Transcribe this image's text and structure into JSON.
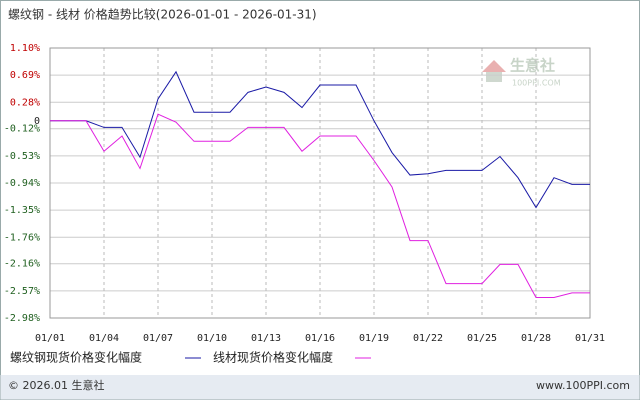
{
  "chart_data": {
    "type": "line",
    "title": "螺纹钢 - 线材 价格趋势比较(2026-01-01 - 2026-01-31)",
    "categories": [
      "01/01",
      null,
      null,
      "01/04",
      null,
      null,
      "01/07",
      null,
      null,
      "01/10",
      null,
      null,
      "01/13",
      null,
      null,
      "01/16",
      null,
      null,
      "01/19",
      null,
      null,
      "01/22",
      null,
      null,
      "01/25",
      null,
      null,
      "01/28",
      null,
      null,
      "01/31"
    ],
    "series": [
      {
        "name": "螺纹钢现货价格变化幅度",
        "color": "#1a1aa6",
        "values": [
          0,
          0,
          0,
          -0.1,
          -0.1,
          -0.55,
          0.33,
          0.74,
          0.13,
          0.13,
          0.13,
          0.43,
          0.51,
          0.43,
          0.2,
          0.54,
          0.54,
          0.54,
          0,
          -0.48,
          -0.82,
          -0.8,
          -0.75,
          -0.75,
          -0.75,
          -0.54,
          -0.86,
          -1.31,
          -0.86,
          -0.96,
          -0.96
        ]
      },
      {
        "name": "线材现货价格变化幅度",
        "color": "#e020e0",
        "values": [
          0,
          0,
          0,
          -0.46,
          -0.23,
          -0.72,
          0.1,
          -0.02,
          -0.31,
          -0.31,
          -0.31,
          -0.1,
          -0.1,
          -0.1,
          -0.46,
          -0.23,
          -0.23,
          -0.23,
          -0.6,
          -1.0,
          -1.81,
          -1.81,
          -2.46,
          -2.46,
          -2.46,
          -2.17,
          -2.17,
          -2.67,
          -2.67,
          -2.6,
          -2.6
        ]
      }
    ],
    "ylim": [
      -2.98,
      1.1
    ],
    "yticks": [
      {
        "value": 1.1,
        "label": "1.10%"
      },
      {
        "value": 0.69,
        "label": "0.69%"
      },
      {
        "value": 0.28,
        "label": "0.28%"
      },
      0,
      {
        "value": -0.12,
        "label": "-0.12%"
      },
      {
        "value": -0.53,
        "label": "-0.53%"
      },
      {
        "value": -0.94,
        "label": "-0.94%"
      },
      {
        "value": -1.35,
        "label": "-1.35%"
      },
      {
        "value": -1.76,
        "label": "-1.76%"
      },
      {
        "value": -2.16,
        "label": "-2.16%"
      },
      {
        "value": -2.57,
        "label": "-2.57%"
      },
      {
        "value": -2.98,
        "label": "-2.98%"
      }
    ],
    "grid": true,
    "watermark": {
      "name": "生意社",
      "site": "100PPI.COM"
    },
    "footer": {
      "left": "© 2026.01 生意社",
      "right": "www.100PPI.com"
    }
  }
}
